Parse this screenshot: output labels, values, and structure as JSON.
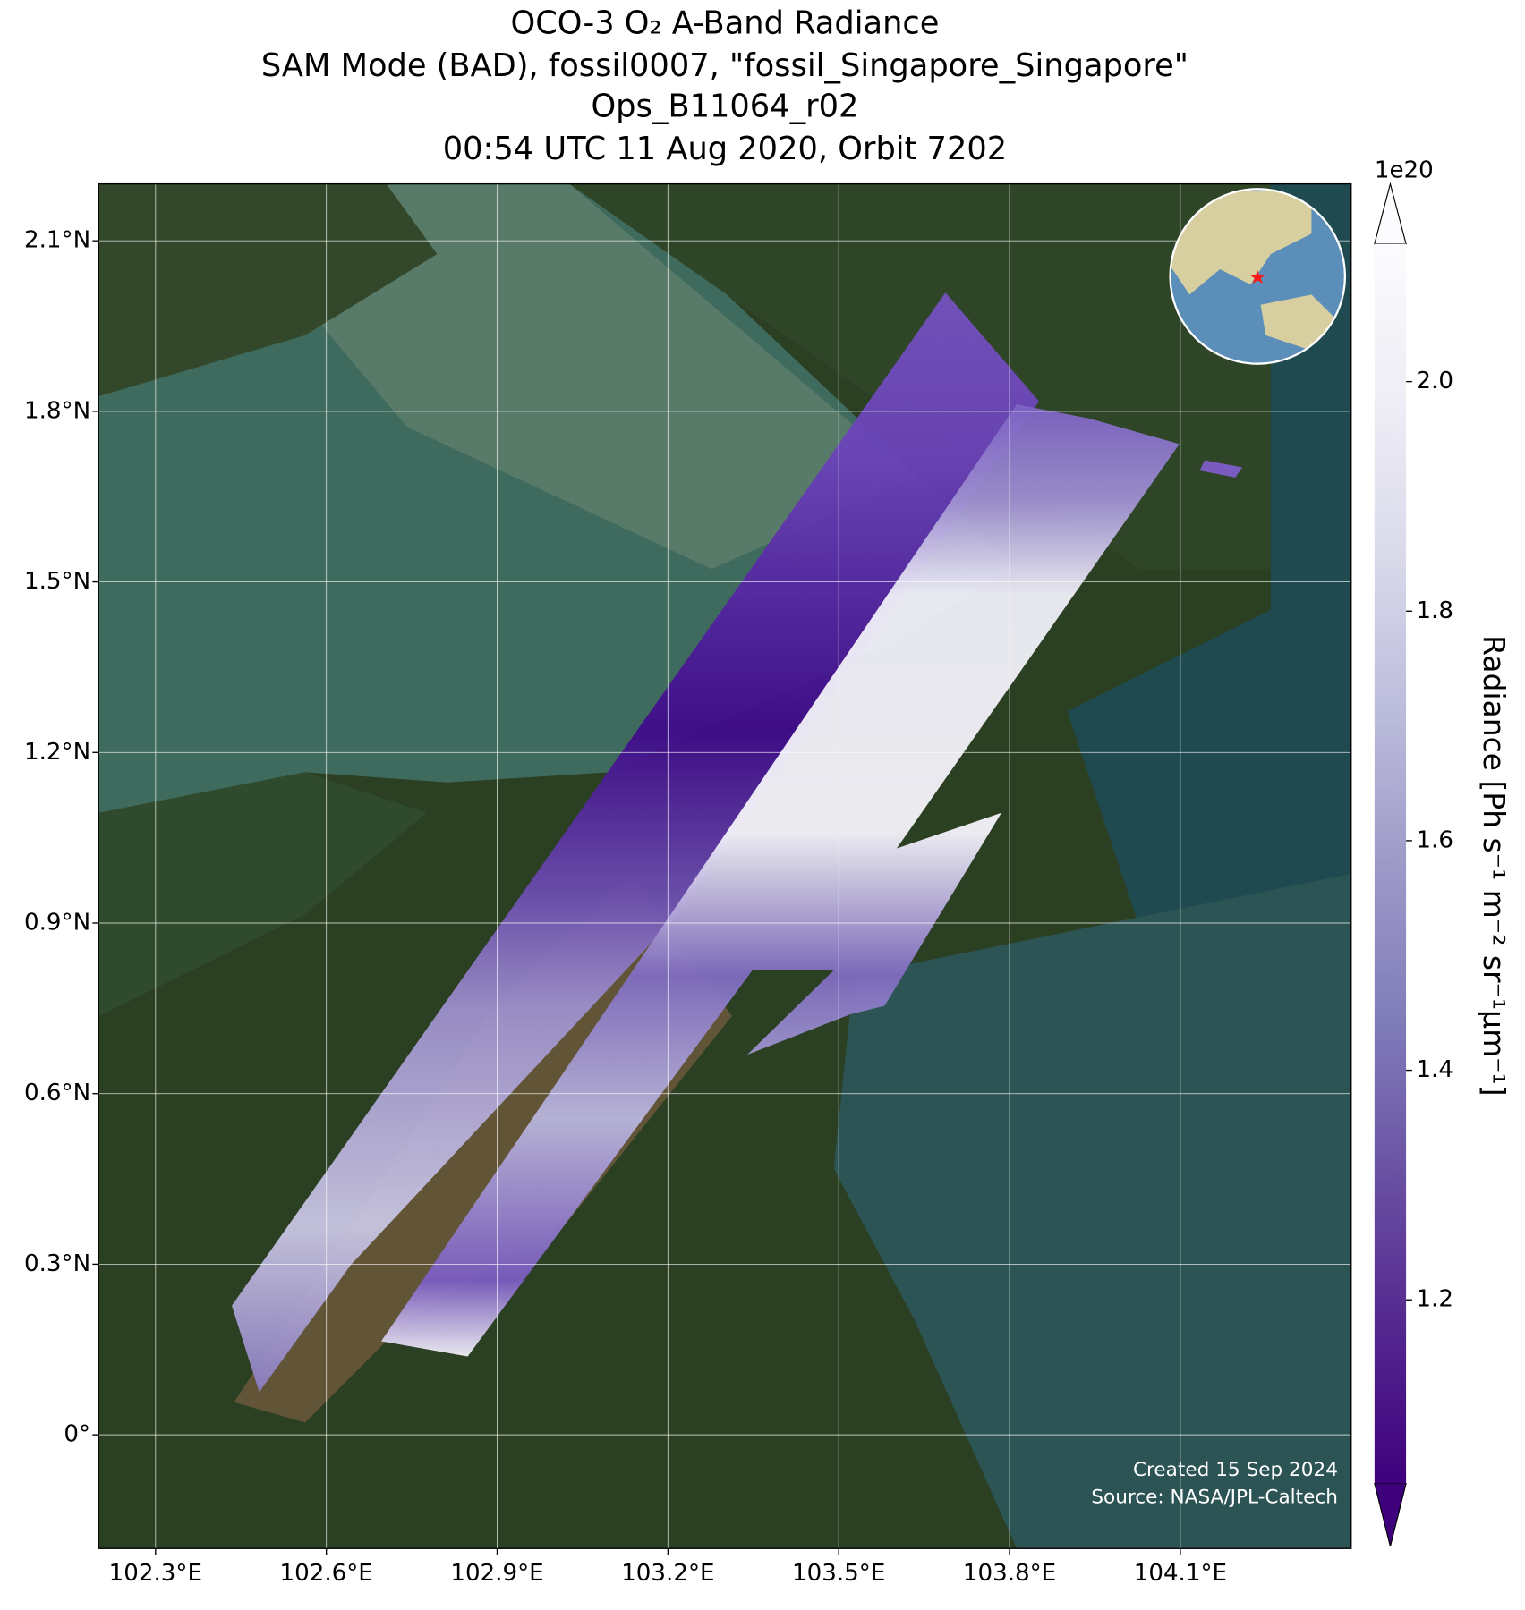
{
  "chart_data": {
    "type": "map",
    "title": [
      "OCO-3 O₂ A-Band Radiance",
      "SAM Mode (BAD), fossil0007, \"fossil_Singapore_Singapore\"",
      "Ops_B11064_r02",
      "00:54 UTC 11 Aug 2020, Orbit 7202"
    ],
    "xlim": [
      102.2,
      104.4
    ],
    "ylim": [
      -0.2,
      2.2
    ],
    "xticks": [
      {
        "value": 102.3,
        "label": "102.3°E"
      },
      {
        "value": 102.6,
        "label": "102.6°E"
      },
      {
        "value": 102.9,
        "label": "102.9°E"
      },
      {
        "value": 103.2,
        "label": "103.2°E"
      },
      {
        "value": 103.5,
        "label": "103.5°E"
      },
      {
        "value": 103.8,
        "label": "103.8°E"
      },
      {
        "value": 104.1,
        "label": "104.1°E"
      }
    ],
    "yticks": [
      {
        "value": 0,
        "label": "0°"
      },
      {
        "value": 0.3,
        "label": "0.3°N"
      },
      {
        "value": 0.6,
        "label": "0.6°N"
      },
      {
        "value": 0.9,
        "label": "0.9°N"
      },
      {
        "value": 1.2,
        "label": "1.2°N"
      },
      {
        "value": 1.5,
        "label": "1.5°N"
      },
      {
        "value": 1.8,
        "label": "1.8°N"
      },
      {
        "value": 2.1,
        "label": "2.1°N"
      }
    ],
    "grid": true,
    "colorbar": {
      "label": "Radiance [Ph s⁻¹ m⁻² sr⁻¹μm⁻¹]",
      "offset": "1e20",
      "lim": [
        1.04,
        2.12
      ],
      "ticks": [
        {
          "value": 1.2,
          "label": "1.2"
        },
        {
          "value": 1.4,
          "label": "1.4"
        },
        {
          "value": 1.6,
          "label": "1.6"
        },
        {
          "value": 1.8,
          "label": "1.8"
        },
        {
          "value": 2.0,
          "label": "2.0"
        }
      ],
      "colors": [
        "#3f007d",
        "#54278f",
        "#6a51a3",
        "#807dba",
        "#9e9ac8",
        "#bcbddc",
        "#dadaeb",
        "#efedf5",
        "#fcfbfd"
      ]
    },
    "credits": [
      "Created 15 Sep 2024",
      "Source: NASA/JPL-Caltech"
    ]
  }
}
